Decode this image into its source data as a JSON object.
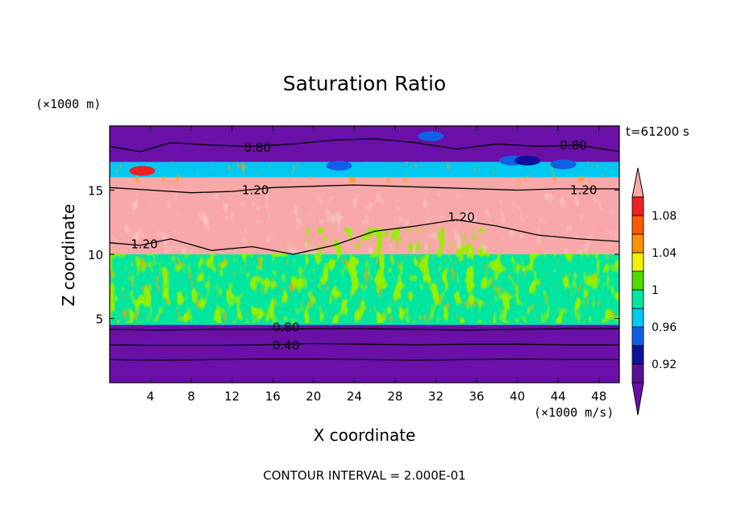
{
  "chart_data": {
    "type": "heatmap",
    "title": "Saturation Ratio",
    "xlabel": "X coordinate",
    "ylabel": "Z coordinate",
    "x_unit": "(×1000 m/s)",
    "y_unit": "(×1000 m)",
    "time_label": "t=61200 s",
    "footer": "CONTOUR INTERVAL = 2.000E-01",
    "xlim": [
      0,
      50
    ],
    "ylim": [
      0,
      20
    ],
    "x_ticks": [
      "4",
      "8",
      "12",
      "16",
      "20",
      "24",
      "28",
      "32",
      "36",
      "40",
      "44",
      "48"
    ],
    "x_tick_values": [
      4,
      8,
      12,
      16,
      20,
      24,
      28,
      32,
      36,
      40,
      44,
      48
    ],
    "y_ticks": [
      "5",
      "10",
      "15"
    ],
    "y_tick_values": [
      5,
      10,
      15
    ],
    "colorbar": {
      "labels": [
        "1.08",
        "1.04",
        "1",
        "0.96",
        "0.92"
      ],
      "label_values": [
        1.08,
        1.04,
        1.0,
        0.96,
        0.92
      ],
      "levels": [
        0.9,
        0.92,
        0.94,
        0.96,
        0.98,
        1.0,
        1.02,
        1.04,
        1.06,
        1.08,
        1.1
      ],
      "colors": [
        "#5a0f9a",
        "#1010a0",
        "#1060e6",
        "#00c8f0",
        "#00e6a0",
        "#50dc00",
        "#f0f000",
        "#ff9000",
        "#ff5a00",
        "#f02020"
      ],
      "under_color": "#6a10a8",
      "over_color": "#f8a8a8"
    },
    "bands": [
      {
        "z_range": [
          0,
          4.5
        ],
        "value": "<0.90",
        "color": "#6a10a8"
      },
      {
        "z_range": [
          4.5,
          10
        ],
        "value": "0.96-1.10 (mixed)",
        "color": "#00e6a0"
      },
      {
        "z_range": [
          10,
          16
        ],
        "value": ">1.10",
        "color": "#f8a8a8"
      },
      {
        "z_range": [
          16,
          17.2
        ],
        "value": "0.92-1.10 (mixed)",
        "color": "#00c8f0"
      },
      {
        "z_range": [
          17.2,
          20
        ],
        "value": "<0.90",
        "color": "#6a10a8"
      }
    ],
    "contour_labels": [
      {
        "text": "0.80",
        "x": 14.5,
        "z": 18.3
      },
      {
        "text": "0.80",
        "x": 45.5,
        "z": 18.5
      },
      {
        "text": "1.20",
        "x": 14.3,
        "z": 15.0
      },
      {
        "text": "1.20",
        "x": 46.5,
        "z": 15.0
      },
      {
        "text": "1.20",
        "x": 34.5,
        "z": 12.9
      },
      {
        "text": "1.20",
        "x": 3.4,
        "z": 10.8
      },
      {
        "text": "0.80",
        "x": 17.3,
        "z": 4.3
      },
      {
        "text": "0.40",
        "x": 17.3,
        "z": 2.9
      }
    ],
    "contours": [
      {
        "level": 0.4,
        "x": [
          0,
          5,
          10,
          15,
          20,
          25,
          30,
          35,
          40,
          45,
          50
        ],
        "z": [
          2.95,
          2.9,
          2.9,
          2.95,
          3.05,
          3.0,
          2.95,
          3.0,
          3.0,
          2.95,
          2.95
        ]
      },
      {
        "level": 0.6,
        "x": [
          0,
          5,
          10,
          15,
          20,
          25,
          30,
          35,
          40,
          45,
          50
        ],
        "z": [
          1.8,
          1.75,
          1.8,
          1.85,
          1.85,
          1.8,
          1.75,
          1.8,
          1.85,
          1.8,
          1.8
        ]
      },
      {
        "level": 0.8,
        "x": [
          0,
          5,
          10,
          15,
          20,
          25,
          30,
          35,
          40,
          45,
          50
        ],
        "z": [
          4.15,
          4.1,
          4.15,
          4.15,
          4.2,
          4.2,
          4.15,
          4.1,
          4.15,
          4.2,
          4.2
        ]
      },
      {
        "level": 0.8,
        "x": [
          0,
          3,
          6,
          10,
          14,
          18,
          22,
          26,
          30,
          34,
          38,
          42,
          46,
          50
        ],
        "z": [
          18.4,
          18.0,
          18.7,
          18.5,
          18.4,
          18.6,
          18.9,
          19.0,
          18.7,
          18.2,
          18.6,
          18.4,
          18.5,
          18.0
        ]
      },
      {
        "level": 1.2,
        "x": [
          0,
          4,
          8,
          12,
          16,
          20,
          24,
          28,
          32,
          36,
          40,
          44,
          48,
          50
        ],
        "z": [
          15.2,
          15.0,
          14.8,
          14.9,
          15.2,
          15.3,
          15.4,
          15.3,
          15.2,
          15.1,
          15.0,
          15.1,
          15.1,
          15.1
        ]
      },
      {
        "level": 1.2,
        "x": [
          0,
          3,
          6,
          10,
          14,
          18,
          22,
          26,
          30,
          34,
          38,
          42,
          46,
          50
        ],
        "z": [
          10.9,
          10.7,
          11.2,
          10.3,
          10.6,
          10.0,
          10.7,
          11.8,
          12.2,
          12.7,
          12.2,
          11.5,
          11.2,
          11.0
        ]
      }
    ],
    "cloud_patches": [
      {
        "x": 31.5,
        "z": 19.2,
        "value": "0.96",
        "color": "#1060e6"
      },
      {
        "x": 39.5,
        "z": 17.3,
        "value": "0.96",
        "color": "#1060e6"
      },
      {
        "x": 41.0,
        "z": 17.3,
        "value": "0.92",
        "color": "#1010a0"
      },
      {
        "x": 44.5,
        "z": 17.0,
        "value": "0.96",
        "color": "#1060e6"
      },
      {
        "x": 22.5,
        "z": 16.9,
        "value": "0.96",
        "color": "#1060e6"
      },
      {
        "x": 3.2,
        "z": 16.5,
        "value": "1.08",
        "color": "#f02020"
      }
    ]
  }
}
